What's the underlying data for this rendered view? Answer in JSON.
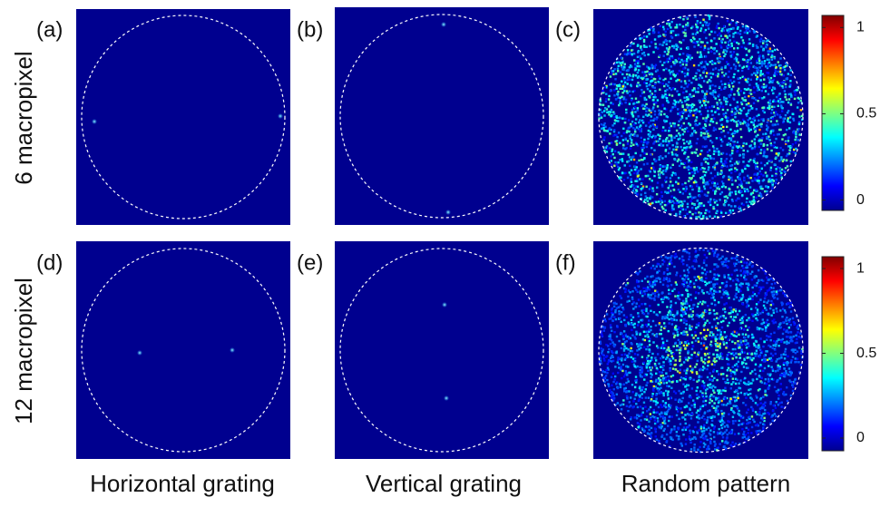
{
  "panels": [
    {
      "label": "(a)"
    },
    {
      "label": "(b)"
    },
    {
      "label": "(c)"
    },
    {
      "label": "(d)"
    },
    {
      "label": "(e)"
    },
    {
      "label": "(f)"
    }
  ],
  "row_labels": [
    "6 macropixel",
    "12 macropixel"
  ],
  "column_labels": [
    "Horizontal grating",
    "Vertical grating",
    "Random pattern"
  ],
  "colorbars": [
    {
      "lim": [
        -0.06,
        1.07
      ],
      "ticks": [
        0,
        0.5,
        1
      ]
    },
    {
      "lim": [
        -0.075,
        1.07
      ],
      "ticks": [
        0,
        0.5,
        1
      ]
    }
  ]
}
